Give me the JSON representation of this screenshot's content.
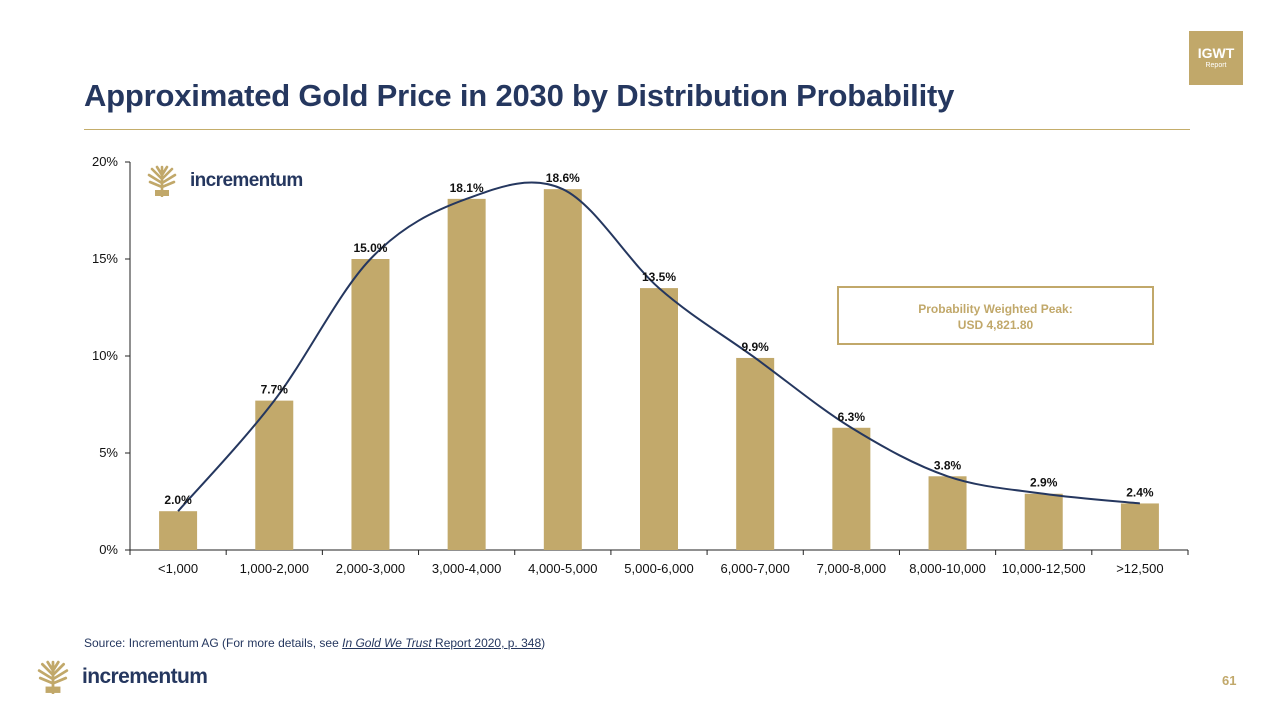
{
  "slide": {
    "title": "Approximated Gold Price in 2030 by Distribution Probability",
    "badge": {
      "line1": "IGWT",
      "line2": "Report"
    },
    "source": {
      "prefix": "Source: Incrementum AG (For more details, see ",
      "link_text": "In Gold We Trust",
      "link_suffix": " Report 2020, p. 348",
      "suffix": ")"
    },
    "brand": "incrementum",
    "page_number": "61"
  },
  "colors": {
    "navy": "#25375f",
    "gold": "#c1a86a",
    "bar": "#c2a96b"
  },
  "chart_data": {
    "type": "bar",
    "title": "Approximated Gold Price in 2030 by Distribution Probability",
    "categories": [
      "<1,000",
      "1,000-2,000",
      "2,000-3,000",
      "3,000-4,000",
      "4,000-5,000",
      "5,000-6,000",
      "6,000-7,000",
      "7,000-8,000",
      "8,000-10,000",
      "10,000-12,500",
      ">12,500"
    ],
    "values": [
      2.0,
      7.7,
      15.0,
      18.1,
      18.6,
      13.5,
      9.9,
      6.3,
      3.8,
      2.9,
      2.4
    ],
    "data_labels": [
      "2.0%",
      "7.7%",
      "15.0%",
      "18.1%",
      "18.6%",
      "13.5%",
      "9.9%",
      "6.3%",
      "3.8%",
      "2.9%",
      "2.4%"
    ],
    "ylim": [
      0,
      20
    ],
    "yticks": [
      0,
      5,
      10,
      15,
      20
    ],
    "ytick_labels": [
      "0%",
      "5%",
      "10%",
      "15%",
      "20%"
    ],
    "xlabel": "",
    "ylabel": "",
    "grid": false,
    "overlay": {
      "type": "smooth-line",
      "name": "distribution curve",
      "follows": "values"
    },
    "annotation": {
      "line1": "Probability Weighted Peak:",
      "line2": "USD 4,821.80",
      "placement": "right of peak, upper-right"
    }
  }
}
